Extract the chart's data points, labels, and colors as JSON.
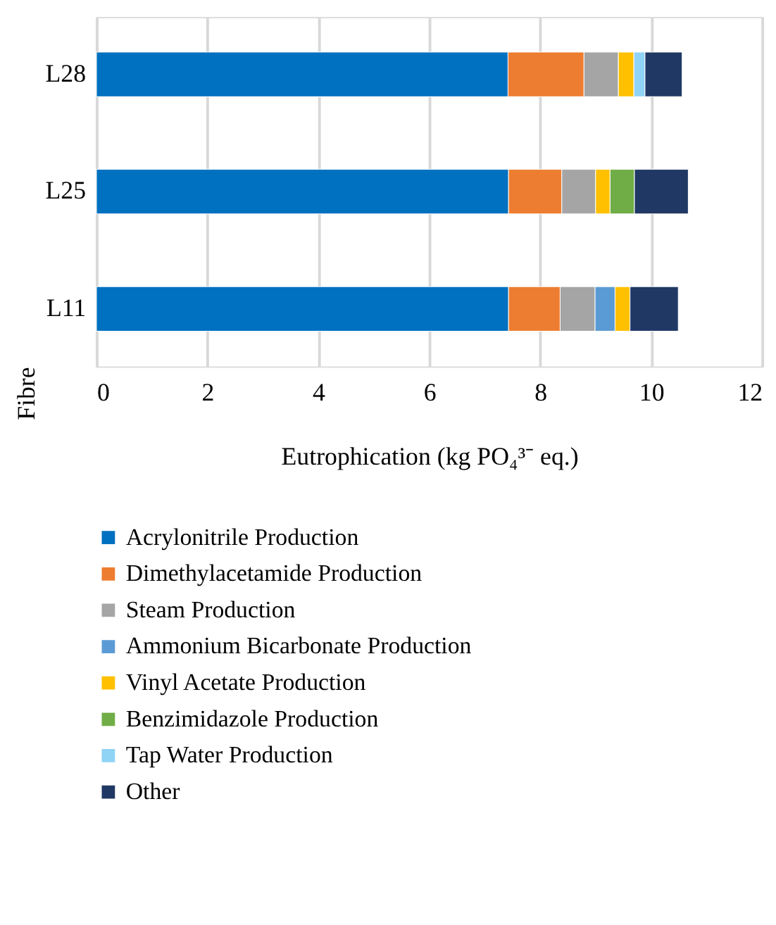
{
  "chart_data": {
    "type": "bar",
    "orientation": "horizontal",
    "stacked": true,
    "xlabel": "Eutrophication (kg PO₄³⁻ eq.)",
    "ylabel": "Fibre",
    "categories": [
      "L28",
      "L25",
      "L11"
    ],
    "series": [
      {
        "name": "Acrylonitrile Production",
        "color": "#0070c0",
        "values": [
          7.42,
          7.43,
          7.43
        ]
      },
      {
        "name": "Dimethylacetamide Production",
        "color": "#ed7d31",
        "values": [
          1.37,
          0.96,
          0.93
        ]
      },
      {
        "name": "Steam Production",
        "color": "#a5a5a5",
        "values": [
          0.62,
          0.61,
          0.63
        ]
      },
      {
        "name": "Ammonium Bicarbonate Production",
        "color": "#5b9bd5",
        "values": [
          null,
          null,
          0.36
        ]
      },
      {
        "name": "Vinyl Acetate Production",
        "color": "#ffc000",
        "values": [
          0.28,
          0.26,
          0.27
        ]
      },
      {
        "name": "Benzimidazole Production",
        "color": "#70ad47",
        "values": [
          null,
          0.44,
          null
        ]
      },
      {
        "name": "Tap Water Production",
        "color": "#8fd3f5",
        "values": [
          0.2,
          null,
          null
        ]
      },
      {
        "name": "Other",
        "color": "#203864",
        "values": [
          0.67,
          0.97,
          0.87
        ]
      }
    ],
    "xlim": [
      0,
      12
    ],
    "xticks": [
      0,
      2,
      4,
      6,
      8,
      10,
      12
    ],
    "grid": "x",
    "legend": "bottom"
  }
}
